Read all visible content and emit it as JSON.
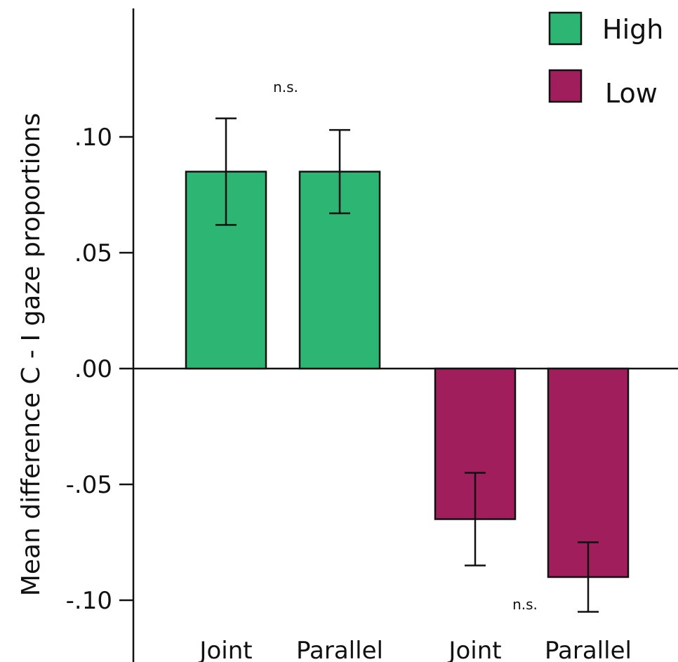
{
  "chart_data": {
    "type": "bar",
    "ylabel": "Mean difference C - I gaze proportions",
    "ylim": [
      -0.12,
      0.155
    ],
    "yticks": [
      {
        "value": 0.1,
        "label": ".10"
      },
      {
        "value": 0.05,
        "label": ".05"
      },
      {
        "value": 0.0,
        "label": ".00"
      },
      {
        "value": -0.05,
        "label": "-.05"
      },
      {
        "value": -0.1,
        "label": "-.10"
      }
    ],
    "categories": [
      "Joint",
      "Parallel",
      "Joint",
      "Parallel"
    ],
    "series": [
      {
        "name": "High",
        "color": "#2db673",
        "values": [
          0.085,
          0.085,
          null,
          null
        ],
        "error": [
          0.023,
          0.018,
          null,
          null
        ]
      },
      {
        "name": "Low",
        "color": "#a01e5c",
        "values": [
          null,
          null,
          -0.065,
          -0.09
        ],
        "error": [
          null,
          null,
          0.02,
          0.015
        ]
      }
    ],
    "annotations": [
      "n.s.",
      "n.s."
    ],
    "legend": "top-right"
  }
}
